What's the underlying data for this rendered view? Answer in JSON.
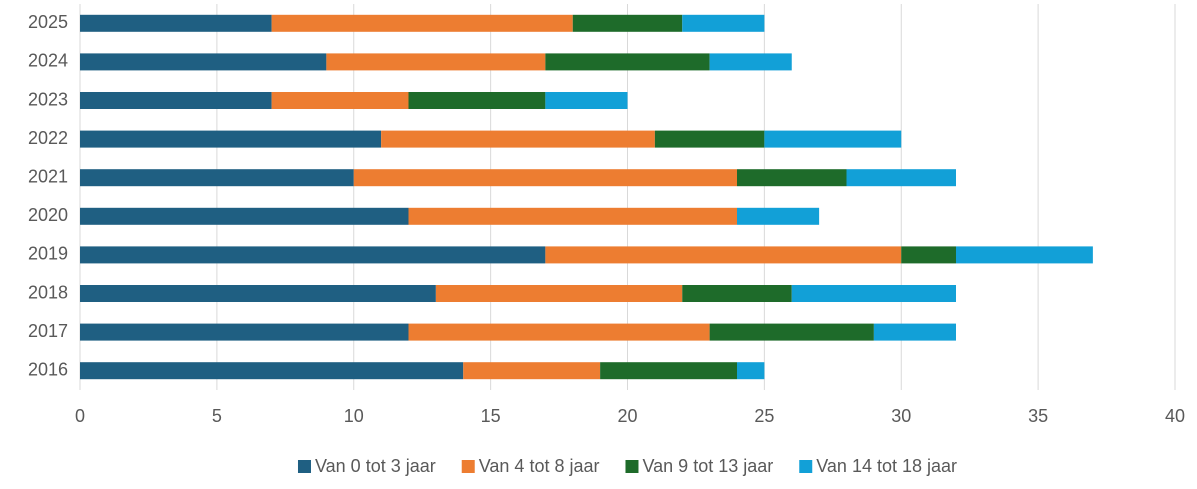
{
  "chart_data": {
    "type": "stacked_barh",
    "categories": [
      "2025",
      "2024",
      "2023",
      "2022",
      "2021",
      "2020",
      "2019",
      "2018",
      "2017",
      "2016"
    ],
    "series": [
      {
        "name": "Van 0 tot 3 jaar",
        "color": "#1f5f82",
        "values": [
          7,
          9,
          7,
          11,
          10,
          12,
          17,
          13,
          12,
          14
        ]
      },
      {
        "name": "Van 4 tot 8 jaar",
        "color": "#ed7d31",
        "values": [
          11,
          8,
          5,
          10,
          14,
          12,
          13,
          9,
          11,
          5
        ]
      },
      {
        "name": "Van 9 tot 13 jaar",
        "color": "#1e6b2a",
        "values": [
          4,
          6,
          5,
          4,
          4,
          0,
          2,
          4,
          6,
          5
        ]
      },
      {
        "name": "Van 14 tot 18 jaar",
        "color": "#12a0d7",
        "values": [
          3,
          3,
          3,
          5,
          4,
          3,
          5,
          6,
          3,
          1
        ]
      }
    ],
    "xlim": [
      0,
      40
    ],
    "xticks": [
      0,
      5,
      10,
      15,
      20,
      25,
      30,
      35,
      40
    ],
    "grid": true,
    "legend": "bottom"
  }
}
